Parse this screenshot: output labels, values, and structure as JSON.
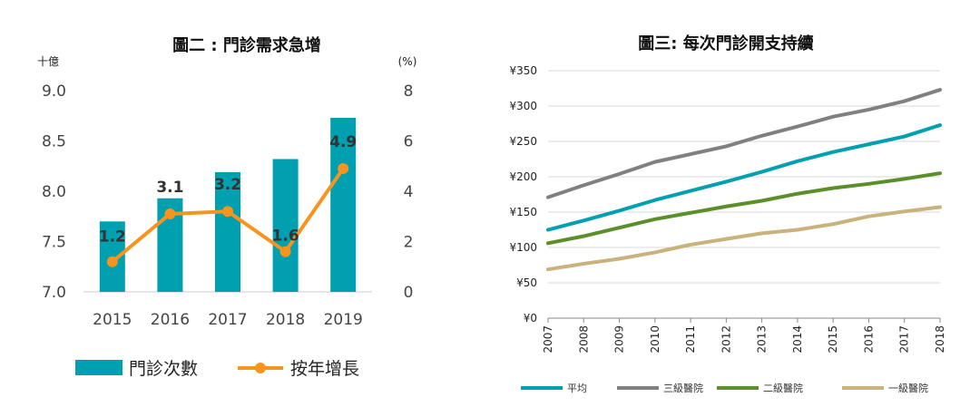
{
  "chart_data": [
    {
      "type": "bar",
      "title": "圖二 : 門診需求急增",
      "y_unit_left": "十億",
      "y_unit_right": "(%)",
      "categories": [
        "2015",
        "2016",
        "2017",
        "2018",
        "2019"
      ],
      "ylim_left": [
        7.0,
        9.0
      ],
      "yticks_left": [
        "7.0",
        "7.5",
        "8.0",
        "8.5",
        "9.0"
      ],
      "ylim_right": [
        0,
        8
      ],
      "yticks_right": [
        "0",
        "2",
        "4",
        "6",
        "8"
      ],
      "series": [
        {
          "name": "門診次數",
          "type": "bar",
          "axis": "left",
          "color": "#00A0B0",
          "values": [
            7.7,
            7.93,
            8.19,
            8.32,
            8.73
          ]
        },
        {
          "name": "按年增長",
          "type": "line",
          "axis": "right",
          "color": "#F7941D",
          "values": [
            1.2,
            3.1,
            3.2,
            1.6,
            4.9
          ],
          "labels": [
            "1.2",
            "3.1",
            "3.2",
            "1.6",
            "4.9"
          ]
        }
      ],
      "legend": "bottom"
    },
    {
      "type": "line",
      "title": "圖三: 每次門診開支持續",
      "x": [
        "2007",
        "2008",
        "2009",
        "2010",
        "2011",
        "2012",
        "2013",
        "2014",
        "2015",
        "2016",
        "2017",
        "2018"
      ],
      "ylim": [
        0,
        350
      ],
      "yticks": [
        "¥0",
        "¥50",
        "¥100",
        "¥150",
        "¥200",
        "¥250",
        "¥300",
        "¥350"
      ],
      "grid": true,
      "series": [
        {
          "name": "平均",
          "color": "#00A0B0",
          "values": [
            125,
            138,
            152,
            167,
            180,
            193,
            207,
            222,
            235,
            246,
            257,
            273
          ]
        },
        {
          "name": "三級醫院",
          "color": "#808080",
          "values": [
            171,
            188,
            204,
            221,
            232,
            243,
            258,
            271,
            285,
            295,
            307,
            323
          ]
        },
        {
          "name": "二級醫院",
          "color": "#5A8F29",
          "values": [
            106,
            116,
            128,
            140,
            149,
            158,
            166,
            176,
            184,
            190,
            197,
            205
          ]
        },
        {
          "name": "一級醫院",
          "color": "#C9B27C",
          "values": [
            69,
            77,
            84,
            93,
            104,
            112,
            120,
            125,
            133,
            144,
            151,
            157
          ]
        }
      ],
      "legend": "bottom"
    }
  ]
}
